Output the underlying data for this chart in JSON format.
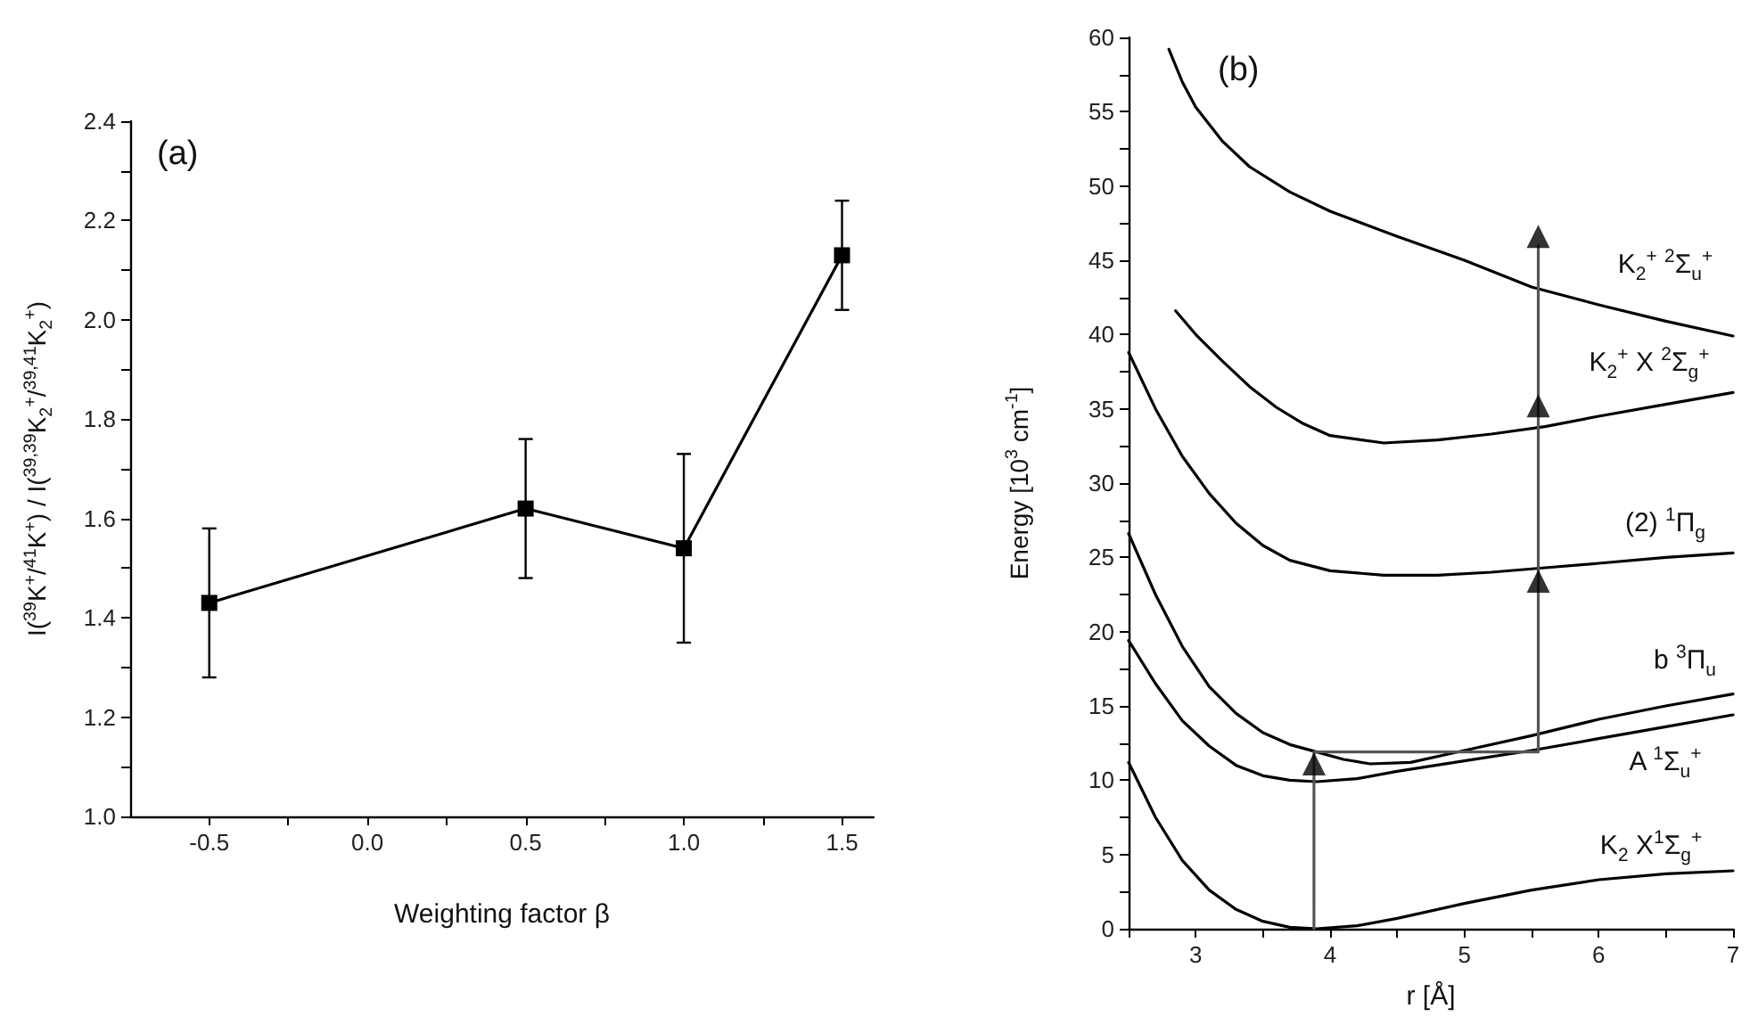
{
  "chart_data": [
    {
      "type": "line",
      "title": "(a)",
      "xlabel": "Weighting factor β",
      "ylabel": "I($^{39}$K$^{+}$/$^{41}$K$^{+}$) / I($^{39,39}$K$_{2}$$^{+}$/$^{39,41}$K$_{2}$$^{+}$)",
      "x": [
        -0.5,
        0.5,
        1.0,
        1.5
      ],
      "series": [
        {
          "color": "#000000",
          "values": [
            1.43,
            1.62,
            1.54,
            2.13
          ],
          "errors": [
            0.15,
            0.14,
            0.19,
            0.11
          ]
        }
      ],
      "xlim": [
        -0.75,
        1.6
      ],
      "xticks": [
        -0.5,
        {
          "value": -0.25,
          "label": null
        },
        {
          "value": 0,
          "label": "0.0"
        },
        {
          "value": 0.25,
          "label": null
        },
        0.5,
        {
          "value": 0.75,
          "label": null
        },
        {
          "value": 1,
          "label": "1.0"
        },
        {
          "value": 1.25,
          "label": null
        },
        1.5
      ],
      "ylim": [
        1.0,
        2.4
      ],
      "yticks": [
        {
          "value": 1,
          "label": "1.0"
        },
        {
          "value": 1.1,
          "label": null
        },
        1.2,
        {
          "value": 1.3,
          "label": null
        },
        1.4,
        {
          "value": 1.5,
          "label": null
        },
        1.6,
        {
          "value": 1.7,
          "label": null
        },
        1.8,
        {
          "value": 1.9,
          "label": null
        },
        {
          "value": 2,
          "label": "2.0"
        },
        {
          "value": 2.1,
          "label": null
        },
        2.2,
        {
          "value": 2.3,
          "label": null
        },
        2.4
      ],
      "marker": "square",
      "line_style": "solid"
    },
    {
      "type": "line",
      "title": "(b)",
      "xlabel": "r [Å]",
      "ylabel": "Energy [10$^{3}$ cm$^{-1}$]",
      "marker": "none",
      "line_style": "solid",
      "series": [
        {
          "color": "#000000",
          "x": [
            2.5,
            2.7,
            2.9,
            3.1,
            3.3,
            3.5,
            3.7,
            3.9,
            4.2,
            4.5,
            5.0,
            5.5,
            6.0,
            6.5,
            7.0
          ],
          "values": [
            11.2,
            7.5,
            4.6,
            2.6,
            1.3,
            0.5,
            0.1,
            0,
            0.2,
            0.7,
            1.7,
            2.6,
            3.3,
            3.7,
            3.9
          ]
        },
        {
          "color": "#000000",
          "x": [
            2.5,
            2.7,
            2.9,
            3.1,
            3.3,
            3.5,
            3.7,
            3.9,
            4.2,
            4.5,
            5.0,
            5.5,
            6.0,
            6.5,
            7.0
          ],
          "values": [
            19.4,
            16.5,
            14.0,
            12.3,
            11.0,
            10.3,
            10.0,
            9.9,
            10.1,
            10.6,
            11.3,
            12.0,
            12.8,
            13.6,
            14.4
          ]
        },
        {
          "color": "#000000",
          "x": [
            2.5,
            2.7,
            2.9,
            3.1,
            3.3,
            3.5,
            3.7,
            3.9,
            4.1,
            4.3,
            4.6,
            5.0,
            5.5,
            6.0,
            6.5,
            7.0
          ],
          "values": [
            26.6,
            22.5,
            19.0,
            16.3,
            14.5,
            13.2,
            12.4,
            11.9,
            11.4,
            11.1,
            11.2,
            12.0,
            13.0,
            14.1,
            15.0,
            15.8
          ]
        },
        {
          "color": "#000000",
          "x": [
            2.5,
            2.7,
            2.9,
            3.1,
            3.3,
            3.5,
            3.7,
            4.0,
            4.4,
            4.8,
            5.2,
            5.6,
            6.0,
            6.5,
            7.0
          ],
          "values": [
            38.8,
            35.0,
            31.8,
            29.3,
            27.3,
            25.8,
            24.8,
            24.1,
            23.8,
            23.8,
            24.0,
            24.3,
            24.6,
            25.0,
            25.3
          ]
        },
        {
          "color": "#000000",
          "x": [
            2.85,
            3.0,
            3.2,
            3.4,
            3.6,
            3.8,
            4.0,
            4.4,
            4.8,
            5.2,
            5.6,
            6.0,
            6.5,
            7.0
          ],
          "values": [
            41.6,
            40.0,
            38.2,
            36.5,
            35.1,
            34.0,
            33.2,
            32.7,
            32.9,
            33.3,
            33.8,
            34.5,
            35.3,
            36.1
          ]
        },
        {
          "color": "#000000",
          "x": [
            2.8,
            2.9,
            3.0,
            3.2,
            3.4,
            3.7,
            4.0,
            4.5,
            5.0,
            5.5,
            6.0,
            6.5,
            7.0
          ],
          "values": [
            59.2,
            57.0,
            55.3,
            53.0,
            51.3,
            49.6,
            48.3,
            46.6,
            45.0,
            43.2,
            42.0,
            40.9,
            39.9
          ]
        },
        {
          "color": "#555555",
          "x": [
            3.88,
            3.88,
            5.55,
            5.55
          ],
          "values": [
            0,
            11.9,
            11.9,
            46.0
          ]
        },
        {
          "type": "scatter",
          "marker": "triangle",
          "color": "#000000",
          "x": [
            3.88,
            5.55,
            5.55,
            5.55
          ],
          "values": [
            11.1,
            23.4,
            35.2,
            46.6
          ]
        }
      ],
      "xlim": [
        2.5,
        7
      ],
      "xticks": [
        {
          "value": 2.5,
          "label": null
        },
        3,
        {
          "value": 3.5,
          "label": null
        },
        4,
        {
          "value": 4.5,
          "label": null
        },
        5,
        {
          "value": 5.5,
          "label": null
        },
        6,
        {
          "value": 6.5,
          "label": null
        },
        7
      ],
      "ylim": [
        0,
        60
      ],
      "yticks": [
        0,
        {
          "value": 2.5,
          "label": null
        },
        5,
        {
          "value": 7.5,
          "label": null
        },
        10,
        {
          "value": 12.5,
          "label": null
        },
        15,
        {
          "value": 17.5,
          "label": null
        },
        20,
        {
          "value": 22.5,
          "label": null
        },
        25,
        {
          "value": 27.5,
          "label": null
        },
        30,
        {
          "value": 32.5,
          "label": null
        },
        35,
        {
          "value": 37.5,
          "label": null
        },
        40,
        {
          "value": 42.5,
          "label": null
        },
        45,
        {
          "value": 47.5,
          "label": null
        },
        50,
        {
          "value": 52.5,
          "label": null
        },
        55,
        {
          "value": 57.5,
          "label": null
        },
        60
      ],
      "annotations": [
        "K$_{2}$$^{+}$ $^{2}$Σ$_{u}$$^{+}$",
        "K$_{2}$$^{+}$ X $^{2}$Σ$_{g}$$^{+}$",
        "(2) $^{1}$Π$_{g}$",
        "b $^{3}$Π$_{u}$",
        "A $^{1}$Σ$_{u}$$^{+}$",
        "K$_{2}$ X$^{1}$Σ$_{g}$$^{+}$"
      ]
    }
  ]
}
